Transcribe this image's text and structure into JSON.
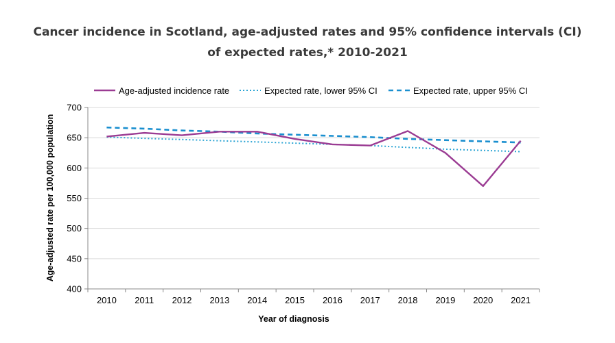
{
  "chart_data": {
    "type": "line",
    "title_line1": "Cancer incidence in Scotland, age-adjusted rates and 95% confidence intervals (CI)",
    "title_line2": "of expected rates,* 2010-2021",
    "xlabel": "Year of diagnosis",
    "ylabel": "Age-adjusted rate per 100,000 population",
    "x": [
      "2010",
      "2011",
      "2012",
      "2013",
      "2014",
      "2015",
      "2016",
      "2017",
      "2018",
      "2019",
      "2020",
      "2021"
    ],
    "ylim": [
      400,
      700
    ],
    "yticks": [
      400,
      450,
      500,
      550,
      600,
      650,
      700
    ],
    "grid": true,
    "legend_position": "top",
    "series": [
      {
        "name": "Age-adjusted incidence rate",
        "color": "#9b3c93",
        "style": "solid",
        "values": [
          652,
          658,
          654,
          660,
          660,
          648,
          639,
          637,
          661,
          625,
          570,
          645
        ]
      },
      {
        "name": "Expected rate, lower 95% CI",
        "color": "#2aa4d4",
        "style": "dotted",
        "values": [
          651,
          649,
          647,
          645,
          643,
          641,
          639,
          637,
          634,
          631,
          629,
          627
        ]
      },
      {
        "name": "Expected rate, upper 95% CI",
        "color": "#1a8fcf",
        "style": "dashed",
        "values": [
          667,
          665,
          662,
          660,
          657,
          655,
          653,
          651,
          648,
          646,
          644,
          642
        ]
      }
    ]
  }
}
